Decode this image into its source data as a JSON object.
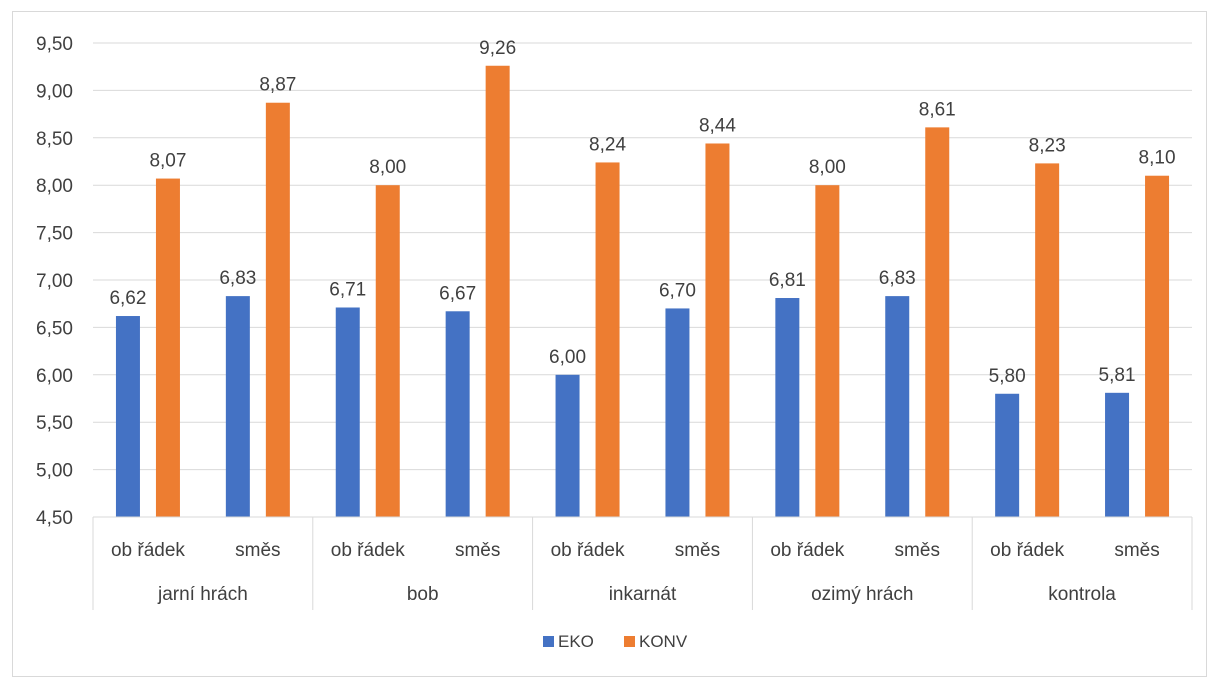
{
  "chart_data": {
    "type": "bar",
    "groups": [
      {
        "label": "jarní hrách",
        "categories": [
          "ob řádek",
          "směs"
        ]
      },
      {
        "label": "bob",
        "categories": [
          "ob řádek",
          "směs"
        ]
      },
      {
        "label": "inkarnát",
        "categories": [
          "ob řádek",
          "směs"
        ]
      },
      {
        "label": "ozimý hrách",
        "categories": [
          "ob řádek",
          "směs"
        ]
      },
      {
        "label": "kontrola",
        "categories": [
          "ob řádek",
          "směs"
        ]
      }
    ],
    "series": [
      {
        "name": "EKO",
        "color": "#4472c4",
        "values": [
          6.62,
          6.83,
          6.71,
          6.67,
          6.0,
          6.7,
          6.81,
          6.83,
          5.8,
          5.81
        ],
        "value_labels": [
          "6,62",
          "6,83",
          "6,71",
          "6,67",
          "6,00",
          "6,70",
          "6,81",
          "6,83",
          "5,80",
          "5,81"
        ]
      },
      {
        "name": "KONV",
        "color": "#ed7d31",
        "values": [
          8.07,
          8.87,
          8.0,
          9.26,
          8.24,
          8.44,
          8.0,
          8.61,
          8.23,
          8.1
        ],
        "value_labels": [
          "8,07",
          "8,87",
          "8,00",
          "9,26",
          "8,24",
          "8,44",
          "8,00",
          "8,61",
          "8,23",
          "8,10"
        ]
      }
    ],
    "ylim": [
      4.5,
      9.5
    ],
    "yticks": [
      4.5,
      5.0,
      5.5,
      6.0,
      6.5,
      7.0,
      7.5,
      8.0,
      8.5,
      9.0,
      9.5
    ],
    "ytick_labels": [
      "4,50",
      "5,00",
      "5,50",
      "6,00",
      "6,50",
      "7,00",
      "7,50",
      "8,00",
      "8,50",
      "9,00",
      "9,50"
    ],
    "grid": true,
    "legend": "bottom-center",
    "colors": {
      "gridline": "#d9d9d9",
      "text": "#404040"
    }
  }
}
